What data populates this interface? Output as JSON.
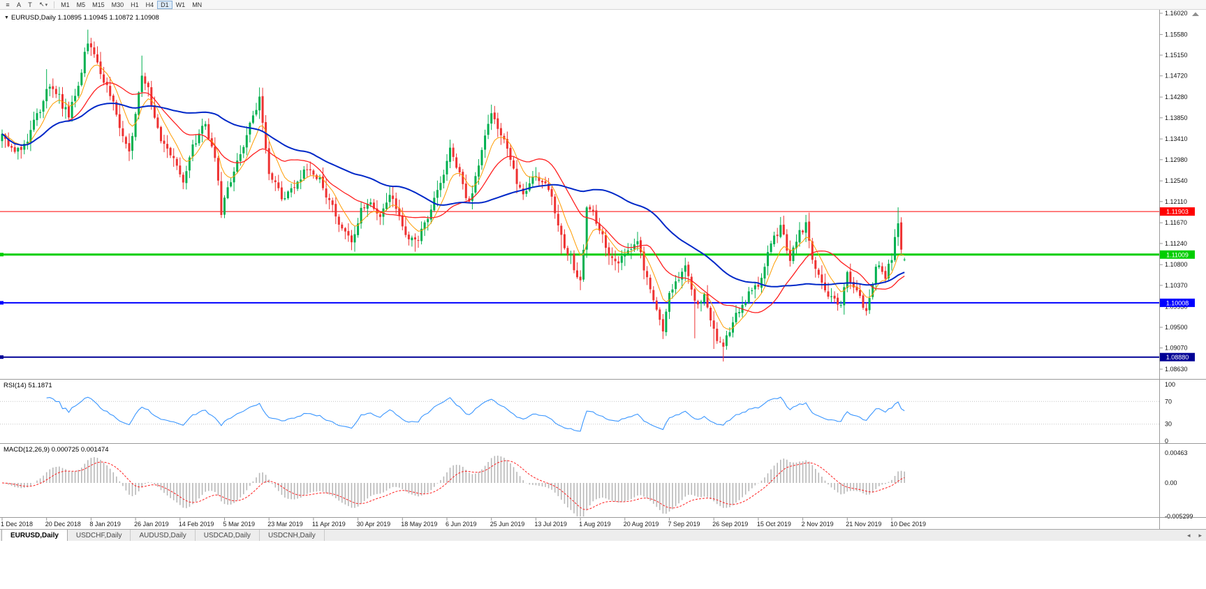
{
  "toolbar": {
    "icons": [
      {
        "name": "chart-list",
        "glyph": "≡"
      },
      {
        "name": "font",
        "glyph": "A"
      },
      {
        "name": "text",
        "glyph": "T"
      },
      {
        "name": "cursor",
        "glyph": "↖"
      },
      {
        "name": "caret",
        "glyph": "▾"
      }
    ],
    "timeframes": [
      {
        "label": "M1",
        "active": false
      },
      {
        "label": "M5",
        "active": false
      },
      {
        "label": "M15",
        "active": false
      },
      {
        "label": "M30",
        "active": false
      },
      {
        "label": "H1",
        "active": false
      },
      {
        "label": "H4",
        "active": false
      },
      {
        "label": "D1",
        "active": true
      },
      {
        "label": "W1",
        "active": false
      },
      {
        "label": "MN",
        "active": false
      }
    ]
  },
  "chart_data": {
    "type": "candlestick",
    "symbol": "EURUSD",
    "period": "Daily",
    "header": "EURUSD,Daily 1.10895 1.10945 1.10872 1.10908",
    "header_dropdown_icon": "▼",
    "ohlc": {
      "open": 1.10895,
      "high": 1.10945,
      "low": 1.10872,
      "close": 1.10908
    },
    "up_color": "#00b050",
    "down_color": "#ee3232",
    "price_axis": {
      "max": 1.1602,
      "min": 1.0863,
      "ticks": [
        "1.16020",
        "1.15580",
        "1.15150",
        "1.14720",
        "1.14280",
        "1.13850",
        "1.13410",
        "1.12980",
        "1.12540",
        "1.12110",
        "1.11670",
        "1.11240",
        "1.10800",
        "1.10370",
        "1.09930",
        "1.09500",
        "1.09070",
        "1.08630"
      ]
    },
    "date_axis": [
      "1 Dec 2018",
      "20 Dec 2018",
      "8 Jan 2019",
      "26 Jan 2019",
      "14 Feb 2019",
      "5 Mar 2019",
      "23 Mar 2019",
      "11 Apr 2019",
      "30 Apr 2019",
      "18 May 2019",
      "6 Jun 2019",
      "25 Jun 2019",
      "13 Jul 2019",
      "1 Aug 2019",
      "20 Aug 2019",
      "7 Sep 2019",
      "26 Sep 2019",
      "15 Oct 2019",
      "2 Nov 2019",
      "21 Nov 2019",
      "10 Dec 2019"
    ],
    "label_every": 14,
    "candle_count": 285,
    "price_anchors": [
      [
        0,
        1.1352
      ],
      [
        4,
        1.1308
      ],
      [
        8,
        1.1345
      ],
      [
        12,
        1.1405
      ],
      [
        14,
        1.1445
      ],
      [
        18,
        1.1425
      ],
      [
        21,
        1.139
      ],
      [
        24,
        1.1455
      ],
      [
        27,
        1.1545
      ],
      [
        29,
        1.1525
      ],
      [
        32,
        1.1465
      ],
      [
        36,
        1.139
      ],
      [
        40,
        1.131
      ],
      [
        44,
        1.148
      ],
      [
        46,
        1.1445
      ],
      [
        50,
        1.134
      ],
      [
        54,
        1.1295
      ],
      [
        57,
        1.125
      ],
      [
        60,
        1.133
      ],
      [
        64,
        1.137
      ],
      [
        67,
        1.13
      ],
      [
        69,
        1.119
      ],
      [
        72,
        1.1255
      ],
      [
        76,
        1.133
      ],
      [
        81,
        1.143
      ],
      [
        84,
        1.127
      ],
      [
        88,
        1.122
      ],
      [
        92,
        1.1245
      ],
      [
        96,
        1.1285
      ],
      [
        100,
        1.1255
      ],
      [
        104,
        1.1195
      ],
      [
        108,
        1.114
      ],
      [
        110,
        1.1125
      ],
      [
        113,
        1.12
      ],
      [
        116,
        1.1215
      ],
      [
        119,
        1.1175
      ],
      [
        122,
        1.1225
      ],
      [
        126,
        1.116
      ],
      [
        130,
        1.1125
      ],
      [
        134,
        1.118
      ],
      [
        138,
        1.1255
      ],
      [
        141,
        1.132
      ],
      [
        144,
        1.127
      ],
      [
        147,
        1.1205
      ],
      [
        150,
        1.129
      ],
      [
        154,
        1.1395
      ],
      [
        157,
        1.1355
      ],
      [
        161,
        1.127
      ],
      [
        164,
        1.122
      ],
      [
        168,
        1.1265
      ],
      [
        172,
        1.1245
      ],
      [
        176,
        1.114
      ],
      [
        180,
        1.1075
      ],
      [
        182,
        1.104
      ],
      [
        184,
        1.12
      ],
      [
        187,
        1.1175
      ],
      [
        190,
        1.1115
      ],
      [
        194,
        1.109
      ],
      [
        197,
        1.111
      ],
      [
        200,
        1.1135
      ],
      [
        203,
        1.1045
      ],
      [
        206,
        1.0985
      ],
      [
        208,
        1.0945
      ],
      [
        210,
        1.103
      ],
      [
        213,
        1.1055
      ],
      [
        215,
        1.108
      ],
      [
        218,
        1.1
      ],
      [
        221,
        1.1015
      ],
      [
        224,
        1.0945
      ],
      [
        227,
        1.09
      ],
      [
        230,
        1.097
      ],
      [
        233,
        1.0992
      ],
      [
        236,
        1.103
      ],
      [
        239,
        1.105
      ],
      [
        242,
        1.113
      ],
      [
        245,
        1.1155
      ],
      [
        248,
        1.109
      ],
      [
        251,
        1.115
      ],
      [
        253,
        1.116
      ],
      [
        256,
        1.1065
      ],
      [
        259,
        1.103
      ],
      [
        262,
        1.1005
      ],
      [
        264,
        1.0992
      ],
      [
        266,
        1.1058
      ],
      [
        269,
        1.1022
      ],
      [
        272,
        1.0988
      ],
      [
        275,
        1.1075
      ],
      [
        278,
        1.106
      ],
      [
        280,
        1.109
      ],
      [
        281,
        1.113
      ],
      [
        282,
        1.1175
      ],
      [
        283,
        1.112
      ],
      [
        284,
        1.1091
      ]
    ],
    "wick_overrides": [
      {
        "i": 14,
        "high": 1.1486
      },
      {
        "i": 27,
        "high": 1.1568
      },
      {
        "i": 44,
        "high": 1.1514
      },
      {
        "i": 69,
        "low": 1.1177
      },
      {
        "i": 81,
        "high": 1.1448
      },
      {
        "i": 110,
        "low": 1.111
      },
      {
        "i": 130,
        "low": 1.1107
      },
      {
        "i": 154,
        "high": 1.1412
      },
      {
        "i": 176,
        "low": 1.1101
      },
      {
        "i": 182,
        "low": 1.1027
      },
      {
        "i": 208,
        "low": 1.0926
      },
      {
        "i": 218,
        "low": 1.0927
      },
      {
        "i": 224,
        "low": 1.0905
      },
      {
        "i": 227,
        "low": 1.0879
      },
      {
        "i": 245,
        "high": 1.1179
      },
      {
        "i": 263,
        "low": 1.0989
      },
      {
        "i": 272,
        "low": 1.0981
      },
      {
        "i": 282,
        "high": 1.1199
      }
    ],
    "moving_averages": [
      {
        "name": "fast-ma-line",
        "type": "ema",
        "period": 8,
        "color": "#ff9c00",
        "width": 1
      },
      {
        "name": "mid-ma-line",
        "type": "sma",
        "period": 21,
        "color": "#ff2020",
        "width": 1.3
      },
      {
        "name": "slow-ma-line",
        "type": "sma",
        "period": 55,
        "color": "#0028c8",
        "width": 2
      }
    ],
    "h_lines": [
      {
        "price": 1.11903,
        "label": "1.11903",
        "color": "#ff0000",
        "width": 1
      },
      {
        "price": 1.11009,
        "label": "1.11009",
        "color": "#00ce00",
        "width": 3
      },
      {
        "price": 1.10008,
        "label": "1.10008",
        "color": "#0000ff",
        "width": 2
      },
      {
        "price": 1.0888,
        "label": "1.08880",
        "color": "#000096",
        "width": 2
      }
    ],
    "rsi": {
      "header": "RSI(14) 51.1871",
      "period": 14,
      "value": 51.1871,
      "color": "#3a96ff",
      "levels": [
        {
          "v": 100,
          "t": "100",
          "line": false
        },
        {
          "v": 70,
          "t": "70",
          "line": true
        },
        {
          "v": 30,
          "t": "30",
          "line": true
        },
        {
          "v": 0,
          "t": "0",
          "line": false
        }
      ]
    },
    "macd": {
      "header": "MACD(12,26,9) 0.000725 0.001474",
      "fast": 12,
      "slow": 26,
      "signal": 9,
      "main_value": 0.000725,
      "signal_value": 0.001474,
      "hist_color": "#b8b8b8",
      "signal_color": "#ff2020",
      "axis": [
        {
          "v": 0.00463,
          "t": "0.00463"
        },
        {
          "v": 0,
          "t": "0.00"
        },
        {
          "v": -0.005299,
          "t": "-0.005299"
        }
      ]
    }
  },
  "tabs": {
    "items": [
      {
        "label": "EURUSD,Daily",
        "active": true
      },
      {
        "label": "USDCHF,Daily",
        "active": false
      },
      {
        "label": "AUDUSD,Daily",
        "active": false
      },
      {
        "label": "USDCAD,Daily",
        "active": false
      },
      {
        "label": "USDCNH,Daily",
        "active": false
      }
    ],
    "scroll_left_icon": "◂",
    "scroll_right_icon": "▸"
  }
}
